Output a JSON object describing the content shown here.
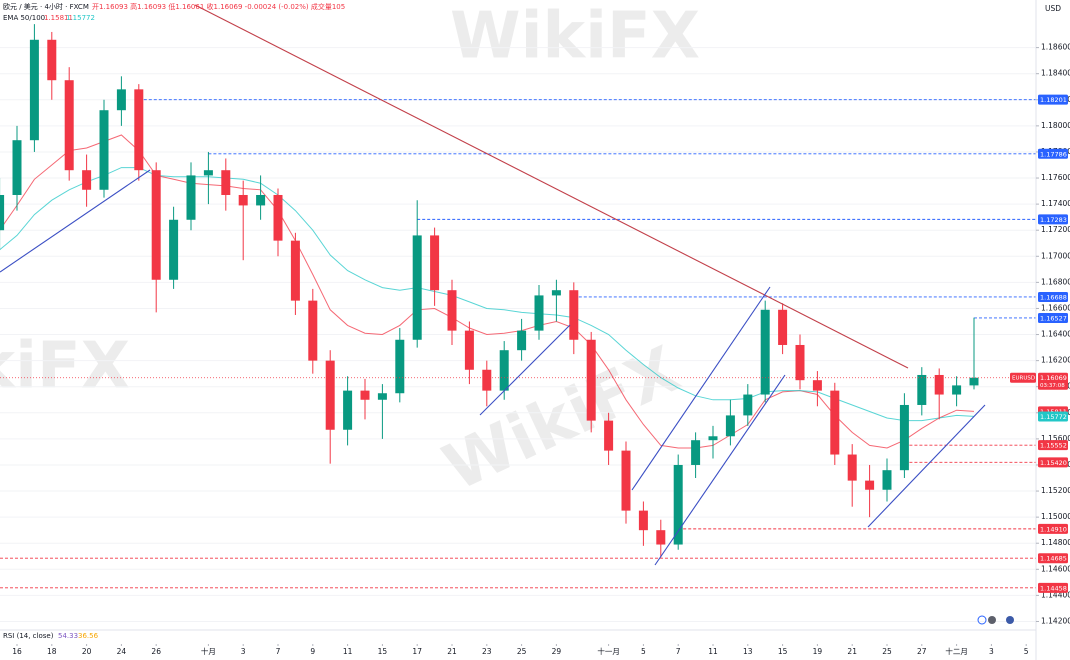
{
  "watermark": "WikiFX",
  "header": {
    "symbol_line": "欧元 / 美元 · 4小时 · FXCM",
    "ohlc": "开1.16093 高1.16093 低1.16061 收1.16069 -0.00024 (-0.02%) 成交量105",
    "indicator": "EMA 50/100"
  },
  "rsi": {
    "label": "RSI (14, close)",
    "value1": "54.33",
    "value2": "36.56"
  },
  "chart_data": {
    "type": "candlestick",
    "currency": "USD",
    "symbol": "EURUSD",
    "countdown": "03:37:08",
    "up_color": "#089981",
    "down_color": "#f23645",
    "grid": true,
    "categories": [
      null,
      "16",
      null,
      "18",
      null,
      "20",
      null,
      "24",
      null,
      "26",
      null,
      null,
      "十月",
      null,
      "3",
      null,
      "7",
      null,
      "9",
      null,
      "11",
      null,
      "15",
      null,
      "17",
      null,
      "21",
      null,
      "23",
      null,
      "25",
      null,
      "29",
      null,
      null,
      "十一月",
      null,
      "5",
      null,
      "7",
      null,
      "11",
      null,
      "13",
      null,
      "15",
      null,
      "19",
      null,
      "21",
      null,
      "25",
      null,
      "27",
      null,
      "十二月",
      null,
      "3",
      null,
      "5"
    ],
    "open": [
      1.172,
      1.1747,
      1.1789,
      1.1866,
      1.1835,
      1.1766,
      1.1751,
      1.1812,
      1.1828,
      1.1766,
      1.1682,
      1.1728,
      1.1762,
      1.1766,
      1.1747,
      1.1739,
      1.1747,
      1.1712,
      1.1666,
      1.162,
      1.1567,
      1.1597,
      1.159,
      1.1595,
      1.1636,
      1.1716,
      1.1674,
      1.1643,
      1.1613,
      1.1597,
      1.1628,
      1.1643,
      1.167,
      1.1674,
      1.1636,
      1.1574,
      1.1551,
      1.1505,
      1.149,
      1.1479,
      1.154,
      1.1559,
      1.1562,
      1.1578,
      1.1594,
      1.1659,
      1.1632,
      1.1605,
      1.1597,
      1.1548,
      1.1528,
      1.1521,
      1.1536,
      1.1586,
      1.1609,
      1.1594,
      1.1601,
      null,
      null,
      null
    ],
    "high": [
      1.176,
      1.18,
      1.1878,
      1.1872,
      1.1845,
      1.1778,
      1.182,
      1.1838,
      1.1832,
      1.1772,
      1.1738,
      1.1772,
      1.178,
      1.1775,
      1.1758,
      1.1762,
      1.1752,
      1.1718,
      1.1675,
      1.1628,
      1.1608,
      1.1606,
      1.1602,
      1.1645,
      1.1743,
      1.1722,
      1.1682,
      1.165,
      1.162,
      1.1635,
      1.1652,
      1.1678,
      1.1682,
      1.168,
      1.1642,
      1.158,
      1.1558,
      1.1512,
      1.1498,
      1.1548,
      1.1565,
      1.157,
      1.159,
      1.1602,
      1.1666,
      1.1664,
      1.164,
      1.1612,
      1.1603,
      1.1556,
      1.154,
      1.1545,
      1.1595,
      1.1615,
      1.1614,
      1.1608,
      1.1653,
      null,
      null,
      null
    ],
    "low": [
      1.1705,
      1.1735,
      1.178,
      1.182,
      1.1758,
      1.1738,
      1.1745,
      1.18,
      1.1758,
      1.1657,
      1.1675,
      1.172,
      1.174,
      1.1735,
      1.1697,
      1.1728,
      1.17,
      1.1655,
      1.161,
      1.1541,
      1.1555,
      1.1575,
      1.156,
      1.1588,
      1.163,
      1.1662,
      1.1632,
      1.1602,
      1.1585,
      1.159,
      1.162,
      1.1636,
      1.165,
      1.1625,
      1.1565,
      1.154,
      1.1495,
      1.1478,
      1.1469,
      1.1475,
      1.153,
      1.1545,
      1.1555,
      1.157,
      1.1588,
      1.1625,
      1.1598,
      1.1585,
      1.154,
      1.1508,
      1.15,
      1.1512,
      1.153,
      1.1578,
      1.1575,
      1.1585,
      1.1598,
      null,
      null,
      null
    ],
    "close": [
      1.1747,
      1.1789,
      1.1866,
      1.1835,
      1.1766,
      1.1751,
      1.1812,
      1.1828,
      1.1766,
      1.1682,
      1.1728,
      1.1762,
      1.1766,
      1.1747,
      1.1739,
      1.1747,
      1.1712,
      1.1666,
      1.162,
      1.1567,
      1.1597,
      1.159,
      1.1595,
      1.1636,
      1.1716,
      1.1674,
      1.1643,
      1.1613,
      1.1597,
      1.1628,
      1.1643,
      1.167,
      1.1674,
      1.1636,
      1.1574,
      1.1551,
      1.1505,
      1.149,
      1.1479,
      1.154,
      1.1559,
      1.1562,
      1.1578,
      1.1594,
      1.1659,
      1.1632,
      1.1605,
      1.1597,
      1.1548,
      1.1528,
      1.1521,
      1.1536,
      1.1586,
      1.1609,
      1.1594,
      1.1601,
      1.16069,
      null,
      null,
      null
    ],
    "series": [
      {
        "color": "#f23645",
        "values": [
          1.172,
          1.1739,
          1.1759,
          1.177,
          1.1781,
          1.1783,
          1.1788,
          1.1793,
          1.1781,
          1.1762,
          1.1759,
          1.1756,
          1.1755,
          1.1754,
          1.1752,
          1.1751,
          1.1735,
          1.1712,
          1.1686,
          1.1659,
          1.1647,
          1.1641,
          1.164,
          1.1647,
          1.1659,
          1.166,
          1.1653,
          1.1645,
          1.164,
          1.1641,
          1.1643,
          1.1647,
          1.165,
          1.1645,
          1.1632,
          1.1613,
          1.159,
          1.1571,
          1.1555,
          1.1553,
          1.1553,
          1.1555,
          1.1563,
          1.1571,
          1.159,
          1.1596,
          1.1597,
          1.1594,
          1.1578,
          1.1565,
          1.1555,
          1.1553,
          1.1559,
          1.1568,
          1.1576,
          1.1582,
          1.15811,
          null,
          null,
          null
        ]
      },
      {
        "color": "#22c7c7",
        "values": [
          1.1705,
          1.1716,
          1.1732,
          1.1743,
          1.1751,
          1.1757,
          1.1762,
          1.1768,
          1.1768,
          1.1762,
          1.1761,
          1.1761,
          1.1761,
          1.176,
          1.1759,
          1.1756,
          1.1747,
          1.1735,
          1.172,
          1.1701,
          1.1689,
          1.1682,
          1.1676,
          1.1674,
          1.1676,
          1.1673,
          1.167,
          1.1665,
          1.166,
          1.1659,
          1.1657,
          1.1656,
          1.1655,
          1.1653,
          1.1647,
          1.164,
          1.1628,
          1.1617,
          1.1607,
          1.1599,
          1.1593,
          1.159,
          1.159,
          1.1591,
          1.1596,
          1.1597,
          1.1597,
          1.1596,
          1.1591,
          1.1586,
          1.1581,
          1.1576,
          1.1574,
          1.1574,
          1.1576,
          1.1578,
          1.15772,
          null,
          null,
          null
        ]
      }
    ],
    "ylim": [
      1.1415,
      1.1885
    ],
    "yticks": [
      {
        "value": 1.142,
        "label": "1.14200"
      },
      {
        "value": 1.144,
        "label": "1.14400"
      },
      {
        "value": 1.146,
        "label": "1.14600"
      },
      {
        "value": 1.148,
        "label": "1.14800"
      },
      {
        "value": 1.15,
        "label": "1.15000"
      },
      {
        "value": 1.152,
        "label": "1.15200"
      },
      {
        "value": 1.154,
        "label": "1.15400"
      },
      {
        "value": 1.156,
        "label": "1.15600"
      },
      {
        "value": 1.158,
        "label": "1.15800"
      },
      {
        "value": 1.16,
        "label": "1.16000"
      },
      {
        "value": 1.162,
        "label": "1.16200"
      },
      {
        "value": 1.164,
        "label": "1.16400"
      },
      {
        "value": 1.166,
        "label": "1.16600"
      },
      {
        "value": 1.168,
        "label": "1.16800"
      },
      {
        "value": 1.17,
        "label": "1.17000"
      },
      {
        "value": 1.172,
        "label": "1.17200"
      },
      {
        "value": 1.174,
        "label": "1.17400"
      },
      {
        "value": 1.176,
        "label": "1.17600"
      },
      {
        "value": 1.178,
        "label": "1.17800"
      },
      {
        "value": 1.18,
        "label": "1.18000"
      },
      {
        "value": 1.182,
        "label": "1.18200"
      },
      {
        "value": 1.184,
        "label": "1.18400"
      },
      {
        "value": 1.186,
        "label": "1.18600"
      }
    ],
    "levels": [
      {
        "value": 1.18201,
        "color": "#2962ff"
      },
      {
        "value": 1.17786,
        "color": "#2962ff"
      },
      {
        "value": 1.17283,
        "color": "#2962ff"
      },
      {
        "value": 1.16688,
        "color": "#2962ff"
      },
      {
        "value": 1.16527,
        "color": "#2962ff"
      },
      {
        "value": 1.15552,
        "color": "#f23645"
      },
      {
        "value": {
          "value": 1.1542,
          "label": "1.15420"
        },
        "color": "#f23645"
      },
      {
        "value": {
          "value": 1.1491,
          "label": "1.14910"
        },
        "color": "#f23645"
      },
      {
        "value": 1.14685,
        "color": "#f23645"
      },
      {
        "value": 1.14458,
        "color": "#f23645"
      }
    ]
  }
}
